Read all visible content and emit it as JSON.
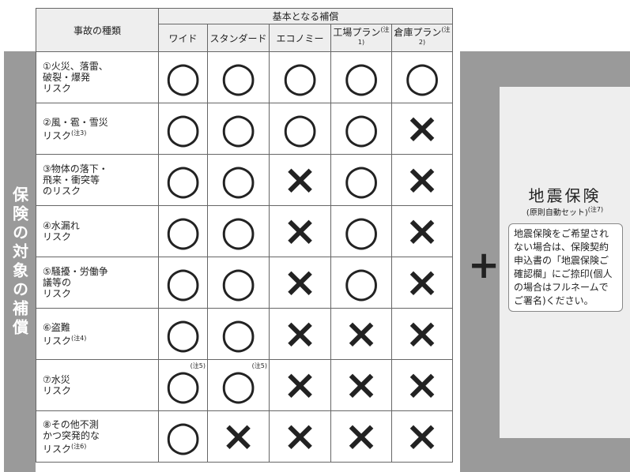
{
  "side_label": "保険の対象の補償",
  "header": {
    "kind": "事故の種類",
    "basic": "基本となる補償",
    "columns": [
      {
        "name": "ワイド"
      },
      {
        "name": "スタンダード"
      },
      {
        "name": "エコノミー"
      },
      {
        "name": "工場プラン",
        "note": "(注1)"
      },
      {
        "name": "倉庫プラン",
        "note": "(注2)"
      }
    ]
  },
  "rows": [
    {
      "lines": [
        "①火災、落雷、",
        "破裂・爆発",
        "リスク"
      ],
      "marks": [
        "○",
        "○",
        "○",
        "○",
        "○"
      ]
    },
    {
      "lines": [
        "②風・雹・雪災",
        "リスク"
      ],
      "note": "(注3)",
      "marks": [
        "○",
        "○",
        "○",
        "○",
        "×"
      ]
    },
    {
      "lines": [
        "③物体の落下・",
        "飛来・衝突等",
        "のリスク"
      ],
      "marks": [
        "○",
        "○",
        "×",
        "○",
        "×"
      ]
    },
    {
      "lines": [
        "④水漏れ",
        "リスク"
      ],
      "marks": [
        "○",
        "○",
        "×",
        "○",
        "×"
      ]
    },
    {
      "lines": [
        "⑤騒擾・労働争",
        "議等の",
        "リスク"
      ],
      "marks": [
        "○",
        "○",
        "×",
        "○",
        "×"
      ]
    },
    {
      "lines": [
        "⑥盗難",
        "リスク"
      ],
      "note": "(注4)",
      "marks": [
        "○",
        "○",
        "×",
        "×",
        "×"
      ]
    },
    {
      "lines": [
        "⑦水災",
        "リスク"
      ],
      "marks": [
        "○",
        "○",
        "×",
        "×",
        "×"
      ],
      "mark_notes": [
        "(注5)",
        "(注5)"
      ]
    },
    {
      "lines": [
        "⑧その他不測",
        "かつ突発的な",
        "リスク"
      ],
      "note": "(注6)",
      "marks": [
        "○",
        "×",
        "×",
        "×",
        "×"
      ]
    }
  ],
  "plus": "+",
  "earthquake": {
    "title": "地震保険",
    "subtitle": "(原則自動セット)",
    "note": "(注7)",
    "body": "地震保険をご希望されない場合は、保険契約申込書の「地震保険ご確認欄」にご捺印(個人の場合はフルネームでご署名)ください。"
  }
}
